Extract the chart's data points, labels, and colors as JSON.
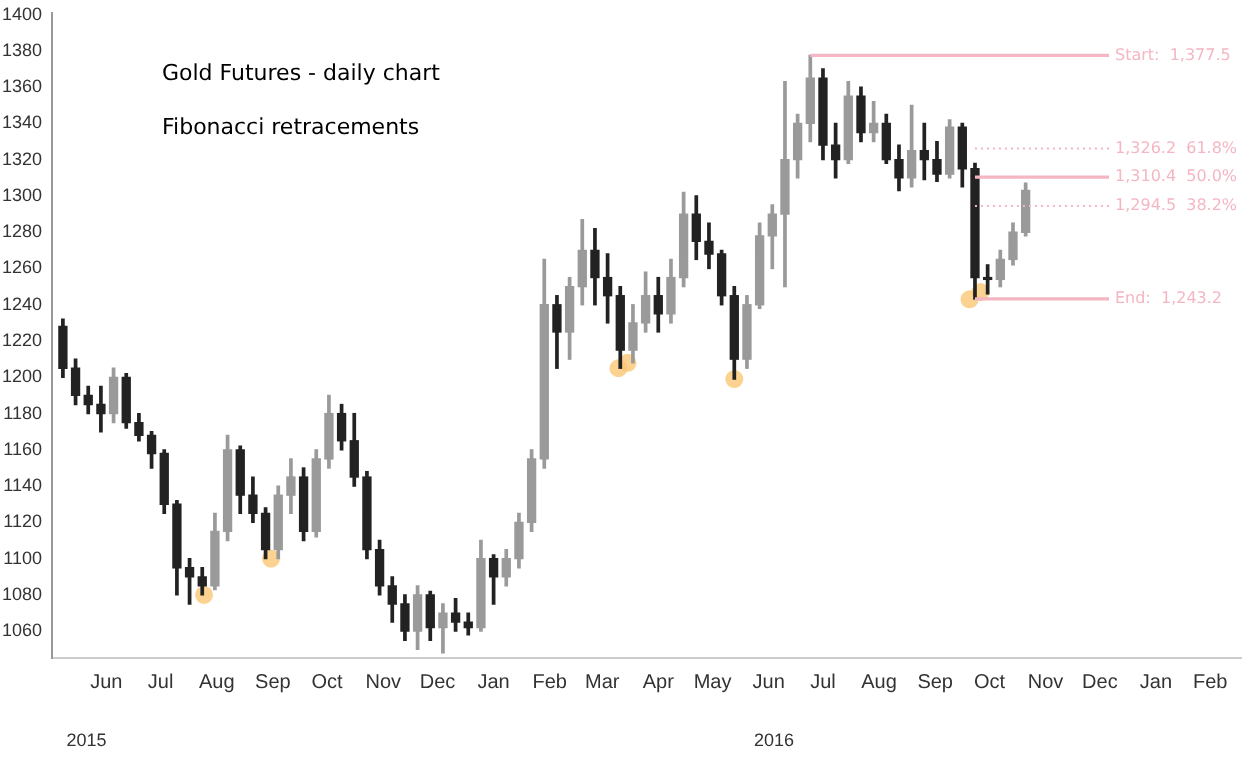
{
  "chart_data": {
    "type": "candlestick",
    "title": "Gold Futures - daily chart",
    "subtitle": "Fibonacci retracements",
    "x": [
      "2015-05-22",
      "2015-05-29",
      "2015-06-05",
      "2015-06-12",
      "2015-06-19",
      "2015-06-26",
      "2015-07-03",
      "2015-07-10",
      "2015-07-17",
      "2015-07-24",
      "2015-07-31",
      "2015-08-07",
      "2015-08-14",
      "2015-08-21",
      "2015-08-28",
      "2015-09-04",
      "2015-09-11",
      "2015-09-18",
      "2015-09-25",
      "2015-10-02",
      "2015-10-09",
      "2015-10-16",
      "2015-10-23",
      "2015-10-30",
      "2015-11-06",
      "2015-11-13",
      "2015-11-20",
      "2015-11-27",
      "2015-12-04",
      "2015-12-11",
      "2015-12-18",
      "2015-12-25",
      "2016-01-01",
      "2016-01-08",
      "2016-01-15",
      "2016-01-22",
      "2016-01-29",
      "2016-02-05",
      "2016-02-12",
      "2016-02-19",
      "2016-02-26",
      "2016-03-04",
      "2016-03-11",
      "2016-03-18",
      "2016-03-25",
      "2016-04-01",
      "2016-04-08",
      "2016-04-15",
      "2016-04-22",
      "2016-04-29",
      "2016-05-06",
      "2016-05-13",
      "2016-05-20",
      "2016-05-27",
      "2016-06-03",
      "2016-06-10",
      "2016-06-17",
      "2016-06-24",
      "2016-07-01",
      "2016-07-08",
      "2016-07-15",
      "2016-07-22",
      "2016-07-29",
      "2016-08-05",
      "2016-08-12",
      "2016-08-19",
      "2016-08-26",
      "2016-09-02",
      "2016-09-09",
      "2016-09-16",
      "2016-09-23",
      "2016-09-30",
      "2016-10-07",
      "2016-10-14",
      "2016-10-21",
      "2016-10-28",
      "2016-11-04"
    ],
    "ohlc": [
      [
        1228,
        1232,
        1200,
        1205
      ],
      [
        1205,
        1210,
        1185,
        1190
      ],
      [
        1190,
        1195,
        1180,
        1185
      ],
      [
        1185,
        1195,
        1170,
        1180
      ],
      [
        1180,
        1205,
        1175,
        1200
      ],
      [
        1200,
        1202,
        1172,
        1175
      ],
      [
        1175,
        1180,
        1165,
        1168
      ],
      [
        1168,
        1170,
        1150,
        1158
      ],
      [
        1158,
        1160,
        1125,
        1130
      ],
      [
        1130,
        1132,
        1080,
        1095
      ],
      [
        1095,
        1100,
        1075,
        1090
      ],
      [
        1090,
        1095,
        1080,
        1085
      ],
      [
        1085,
        1125,
        1083,
        1115
      ],
      [
        1115,
        1168,
        1110,
        1160
      ],
      [
        1160,
        1162,
        1125,
        1135
      ],
      [
        1135,
        1145,
        1120,
        1125
      ],
      [
        1125,
        1128,
        1100,
        1105
      ],
      [
        1105,
        1140,
        1100,
        1135
      ],
      [
        1135,
        1155,
        1125,
        1145
      ],
      [
        1145,
        1150,
        1110,
        1115
      ],
      [
        1115,
        1160,
        1112,
        1155
      ],
      [
        1155,
        1190,
        1150,
        1180
      ],
      [
        1180,
        1185,
        1160,
        1165
      ],
      [
        1165,
        1180,
        1140,
        1145
      ],
      [
        1145,
        1148,
        1100,
        1105
      ],
      [
        1105,
        1110,
        1080,
        1085
      ],
      [
        1085,
        1090,
        1065,
        1075
      ],
      [
        1075,
        1080,
        1055,
        1060
      ],
      [
        1060,
        1085,
        1050,
        1080
      ],
      [
        1080,
        1082,
        1055,
        1062
      ],
      [
        1062,
        1075,
        1048,
        1070
      ],
      [
        1070,
        1078,
        1060,
        1065
      ],
      [
        1065,
        1070,
        1058,
        1062
      ],
      [
        1062,
        1110,
        1060,
        1100
      ],
      [
        1100,
        1102,
        1075,
        1090
      ],
      [
        1090,
        1105,
        1085,
        1100
      ],
      [
        1100,
        1125,
        1095,
        1120
      ],
      [
        1120,
        1160,
        1115,
        1155
      ],
      [
        1155,
        1265,
        1150,
        1240
      ],
      [
        1240,
        1245,
        1205,
        1225
      ],
      [
        1225,
        1255,
        1210,
        1250
      ],
      [
        1250,
        1287,
        1240,
        1270
      ],
      [
        1270,
        1282,
        1240,
        1255
      ],
      [
        1255,
        1268,
        1230,
        1245
      ],
      [
        1245,
        1250,
        1205,
        1215
      ],
      [
        1215,
        1240,
        1208,
        1230
      ],
      [
        1230,
        1258,
        1225,
        1245
      ],
      [
        1245,
        1255,
        1225,
        1235
      ],
      [
        1235,
        1265,
        1230,
        1255
      ],
      [
        1255,
        1302,
        1250,
        1290
      ],
      [
        1290,
        1300,
        1265,
        1275
      ],
      [
        1275,
        1285,
        1260,
        1268
      ],
      [
        1268,
        1270,
        1240,
        1245
      ],
      [
        1245,
        1250,
        1199,
        1210
      ],
      [
        1210,
        1245,
        1205,
        1240
      ],
      [
        1240,
        1285,
        1238,
        1278
      ],
      [
        1278,
        1295,
        1260,
        1290
      ],
      [
        1290,
        1363,
        1250,
        1320
      ],
      [
        1320,
        1345,
        1310,
        1340
      ],
      [
        1340,
        1377.5,
        1330,
        1365
      ],
      [
        1365,
        1370,
        1320,
        1328
      ],
      [
        1328,
        1340,
        1310,
        1320
      ],
      [
        1320,
        1363,
        1318,
        1355
      ],
      [
        1355,
        1360,
        1330,
        1335
      ],
      [
        1335,
        1352,
        1330,
        1340
      ],
      [
        1340,
        1345,
        1318,
        1320
      ],
      [
        1320,
        1328,
        1303,
        1310
      ],
      [
        1310,
        1350,
        1305,
        1325
      ],
      [
        1325,
        1340,
        1309,
        1320
      ],
      [
        1320,
        1330,
        1308,
        1312
      ],
      [
        1312,
        1342,
        1310,
        1338
      ],
      [
        1338,
        1340,
        1305,
        1315
      ],
      [
        1315,
        1318,
        1243.2,
        1255
      ],
      [
        1255,
        1262,
        1246,
        1254
      ],
      [
        1254,
        1270,
        1250,
        1265
      ],
      [
        1265,
        1285,
        1262,
        1280
      ],
      [
        1280,
        1307,
        1278,
        1303
      ]
    ],
    "colors": [
      "#222222",
      "#222222",
      "#222222",
      "#222222",
      "#9a9a9a",
      "#222222",
      "#222222",
      "#222222",
      "#222222",
      "#222222",
      "#222222",
      "#222222",
      "#9a9a9a",
      "#9a9a9a",
      "#222222",
      "#222222",
      "#222222",
      "#9a9a9a",
      "#9a9a9a",
      "#222222",
      "#9a9a9a",
      "#9a9a9a",
      "#222222",
      "#222222",
      "#222222",
      "#222222",
      "#222222",
      "#222222",
      "#9a9a9a",
      "#222222",
      "#9a9a9a",
      "#222222",
      "#222222",
      "#9a9a9a",
      "#222222",
      "#9a9a9a",
      "#9a9a9a",
      "#9a9a9a",
      "#9a9a9a",
      "#222222",
      "#9a9a9a",
      "#9a9a9a",
      "#222222",
      "#222222",
      "#222222",
      "#9a9a9a",
      "#9a9a9a",
      "#222222",
      "#9a9a9a",
      "#9a9a9a",
      "#222222",
      "#222222",
      "#222222",
      "#222222",
      "#9a9a9a",
      "#9a9a9a",
      "#9a9a9a",
      "#9a9a9a",
      "#9a9a9a",
      "#9a9a9a",
      "#222222",
      "#222222",
      "#9a9a9a",
      "#222222",
      "#9a9a9a",
      "#222222",
      "#222222",
      "#9a9a9a",
      "#222222",
      "#222222",
      "#9a9a9a",
      "#222222",
      "#222222",
      "#222222",
      "#9a9a9a",
      "#9a9a9a",
      "#9a9a9a"
    ],
    "series": [
      {
        "type": "scatter",
        "marker": "circle",
        "color": "#fbc774",
        "x": [
          "2015-08-08",
          "2015-09-14",
          "2016-03-24",
          "2016-03-29",
          "2016-05-27",
          "2016-10-04",
          "2016-10-10"
        ],
        "values": [
          1080,
          1100,
          1205,
          1208,
          1199,
          1243,
          1247
        ]
      }
    ],
    "xlim": [
      "2015-05-16",
      "2017-03-03"
    ],
    "xticks": [
      {
        "value": "2015-06-15",
        "label": "Jun"
      },
      {
        "value": "2015-07-15",
        "label": "Jul"
      },
      {
        "value": "2015-08-15",
        "label": "Aug"
      },
      {
        "value": "2015-09-15",
        "label": "Sep"
      },
      {
        "value": "2015-10-15",
        "label": "Oct"
      },
      {
        "value": "2015-11-15",
        "label": "Nov"
      },
      {
        "value": "2015-12-15",
        "label": "Dec"
      },
      {
        "value": "2016-01-15",
        "label": "Jan"
      },
      {
        "value": "2016-02-15",
        "label": "Feb"
      },
      {
        "value": "2016-03-15",
        "label": "Mar"
      },
      {
        "value": "2016-04-15",
        "label": "Apr"
      },
      {
        "value": "2016-05-15",
        "label": "May"
      },
      {
        "value": "2016-06-15",
        "label": "Jun"
      },
      {
        "value": "2016-07-15",
        "label": "Jul"
      },
      {
        "value": "2016-08-15",
        "label": "Aug"
      },
      {
        "value": "2016-09-15",
        "label": "Sep"
      },
      {
        "value": "2016-10-15",
        "label": "Oct"
      },
      {
        "value": "2016-11-15",
        "label": "Nov"
      },
      {
        "value": "2016-12-15",
        "label": "Dec"
      },
      {
        "value": "2017-01-15",
        "label": "Jan"
      },
      {
        "value": "2017-02-14",
        "label": "Feb"
      }
    ],
    "x2lim": [
      "2015-05-16",
      "2017-03-03"
    ],
    "x2ticks": [
      {
        "value": "2015-06-04",
        "label": "2015"
      },
      {
        "value": "2016-06-18",
        "label": "2016"
      }
    ],
    "ylim": [
      1045,
      1401
    ],
    "yticks": [
      1060,
      1080,
      1100,
      1120,
      1140,
      1160,
      1180,
      1200,
      1220,
      1240,
      1260,
      1280,
      1300,
      1320,
      1340,
      1360,
      1380,
      1400
    ],
    "ref_lines": [
      {
        "axis": "y",
        "value": 1377.5,
        "label": "Start:  1,377.5",
        "color": "#f4b6c2",
        "line_style": "solid"
      },
      {
        "axis": "y",
        "value": 1326.2,
        "label": "1,326.2  61.8%",
        "color": "#f4b6c2",
        "line_style": "dotted"
      },
      {
        "axis": "y",
        "value": 1310.4,
        "label": "1,310.4  50.0%",
        "color": "#f4b6c2",
        "line_style": "solid"
      },
      {
        "axis": "y",
        "value": 1294.5,
        "label": "1,294.5  38.2%",
        "color": "#f4b6c2",
        "line_style": "dotted"
      },
      {
        "axis": "y",
        "value": 1243.2,
        "label": "End:  1,243.2",
        "color": "#f4b6c2",
        "line_style": "solid"
      }
    ],
    "grid": false,
    "legend": false
  }
}
